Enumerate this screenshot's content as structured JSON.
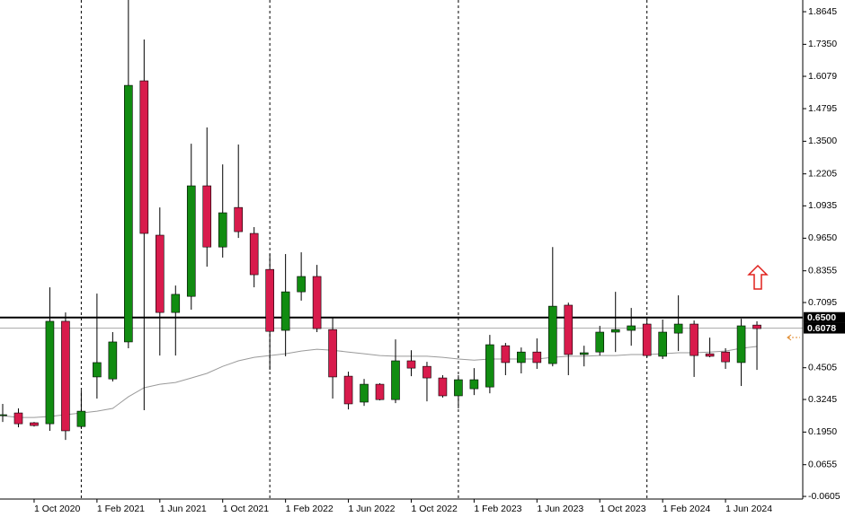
{
  "chart_data": {
    "type": "candlestick",
    "categories": [
      null,
      null,
      "1 Oct 2020",
      null,
      null,
      null,
      "1 Feb 2021",
      null,
      null,
      null,
      "1 Jun 2021",
      null,
      null,
      null,
      "1 Oct 2021",
      null,
      null,
      null,
      "1 Feb 2022",
      null,
      null,
      null,
      "1 Jun 2022",
      null,
      null,
      null,
      "1 Oct 2022",
      null,
      null,
      null,
      "1 Feb 2023",
      null,
      null,
      null,
      "1 Jun 2023",
      null,
      null,
      null,
      "1 Oct 2023",
      null,
      null,
      null,
      "1 Feb 2024",
      null,
      null,
      null,
      "1 Jun 2024",
      null,
      null
    ],
    "open": [
      0.26,
      0.271,
      0.232,
      0.228,
      0.635,
      0.217,
      0.414,
      0.406,
      0.553,
      1.59,
      0.977,
      0.67,
      0.734,
      1.173,
      0.93,
      1.087,
      0.984,
      0.841,
      0.599,
      0.752,
      0.813,
      0.602,
      0.417,
      0.314,
      0.385,
      0.324,
      0.478,
      0.456,
      0.41,
      0.339,
      0.367,
      0.374,
      0.538,
      0.471,
      0.513,
      0.467,
      0.699,
      0.503,
      0.513,
      0.592,
      0.599,
      0.624,
      0.496,
      0.588,
      0.624,
      0.506,
      0.513,
      0.471,
      0.62
    ],
    "high": [
      0.307,
      0.289,
      0.235,
      0.77,
      0.67,
      0.36,
      0.745,
      0.592,
      1.911,
      1.754,
      1.087,
      0.777,
      1.34,
      1.405,
      1.258,
      1.337,
      1.009,
      0.902,
      0.902,
      0.909,
      0.859,
      0.652,
      0.435,
      0.406,
      0.389,
      0.563,
      0.52,
      0.474,
      0.421,
      0.421,
      0.449,
      0.581,
      0.549,
      0.531,
      0.567,
      0.93,
      0.709,
      0.538,
      0.617,
      0.752,
      0.688,
      0.645,
      0.642,
      0.738,
      0.638,
      0.57,
      0.528,
      0.645,
      0.635
    ],
    "low": [
      0.235,
      0.214,
      0.217,
      0.2,
      0.164,
      0.207,
      0.328,
      0.396,
      0.528,
      0.282,
      0.499,
      0.499,
      0.681,
      0.852,
      0.888,
      0.966,
      0.77,
      0.442,
      0.496,
      0.717,
      0.592,
      0.328,
      0.285,
      0.299,
      0.321,
      0.31,
      0.417,
      0.317,
      0.332,
      0.289,
      0.342,
      0.349,
      0.421,
      0.428,
      0.446,
      0.456,
      0.421,
      0.456,
      0.499,
      0.513,
      0.538,
      0.492,
      0.485,
      0.517,
      0.414,
      0.492,
      0.446,
      0.378,
      0.442
    ],
    "close": [
      0.264,
      0.228,
      0.221,
      0.635,
      0.2,
      0.278,
      0.471,
      0.553,
      1.572,
      0.984,
      0.67,
      0.742,
      1.173,
      0.93,
      1.066,
      0.991,
      0.82,
      0.595,
      0.752,
      0.813,
      0.606,
      0.414,
      0.307,
      0.385,
      0.324,
      0.478,
      0.449,
      0.41,
      0.339,
      0.403,
      0.403,
      0.542,
      0.471,
      0.513,
      0.471,
      0.695,
      0.503,
      0.51,
      0.592,
      0.602,
      0.617,
      0.499,
      0.592,
      0.624,
      0.499,
      0.496,
      0.474,
      0.617,
      0.606
    ],
    "up_color": "#118c11",
    "down_color": "#d81b4c",
    "moving_average": {
      "color": "#9a9a9a",
      "values": [
        0.26,
        0.253,
        0.253,
        0.257,
        0.264,
        0.271,
        0.278,
        0.289,
        0.335,
        0.371,
        0.385,
        0.392,
        0.41,
        0.428,
        0.456,
        0.478,
        0.492,
        0.499,
        0.506,
        0.517,
        0.524,
        0.52,
        0.513,
        0.506,
        0.499,
        0.496,
        0.496,
        0.496,
        0.492,
        0.485,
        0.481,
        0.485,
        0.485,
        0.485,
        0.485,
        0.492,
        0.496,
        0.496,
        0.499,
        0.499,
        0.503,
        0.503,
        0.506,
        0.51,
        0.51,
        0.513,
        0.517,
        0.528,
        0.535
      ]
    },
    "ylim": [
      -0.071,
      1.911
    ],
    "yticks": [
      1.8645,
      {
        "value": 1.735,
        "label": "1.7350"
      },
      1.6079,
      1.4795,
      {
        "value": 1.35,
        "label": "1.3500"
      },
      1.2205,
      1.0935,
      {
        "value": 0.965,
        "label": "0.9650"
      },
      0.8355,
      0.7095,
      0.4505,
      0.3245,
      {
        "value": 0.195,
        "label": "0.1950"
      },
      0.0655,
      -0.0605
    ],
    "hlines": [
      {
        "value": 0.65,
        "label": "0.6500",
        "color": "#000000"
      },
      {
        "value": 0.6078,
        "label": "0.6078",
        "color": "#a8a8a8"
      }
    ]
  }
}
